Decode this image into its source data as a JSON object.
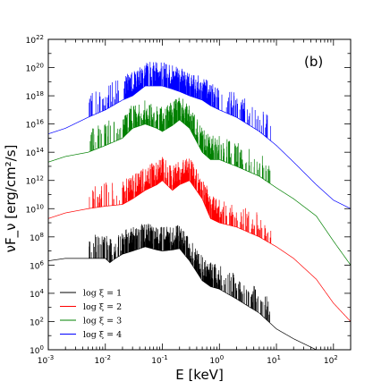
{
  "chart_data": {
    "type": "line",
    "panel_label": "(b)",
    "xlabel": "E [keV]",
    "ylabel": "νF_ν [erg/cm²/s]",
    "xscale": "log",
    "yscale": "log",
    "xlim": [
      0.001,
      200
    ],
    "ylim": [
      1,
      1e+22
    ],
    "x_ticks": [
      {
        "value": 0.001,
        "base": "10",
        "exp": "-3"
      },
      {
        "value": 0.01,
        "base": "10",
        "exp": "-2"
      },
      {
        "value": 0.1,
        "base": "10",
        "exp": "-1"
      },
      {
        "value": 1,
        "base": "10",
        "exp": "0"
      },
      {
        "value": 10,
        "base": "10",
        "exp": "1"
      },
      {
        "value": 100,
        "base": "10",
        "exp": "2"
      }
    ],
    "y_ticks": [
      {
        "value": 1,
        "base": "10",
        "exp": "0"
      },
      {
        "value": 100,
        "base": "10",
        "exp": "2"
      },
      {
        "value": 10000,
        "base": "10",
        "exp": "4"
      },
      {
        "value": 1000000,
        "base": "10",
        "exp": "6"
      },
      {
        "value": 100000000,
        "base": "10",
        "exp": "8"
      },
      {
        "value": 10000000000.0,
        "base": "10",
        "exp": "10"
      },
      {
        "value": 1000000000000.0,
        "base": "10",
        "exp": "12"
      },
      {
        "value": 100000000000000.0,
        "base": "10",
        "exp": "14"
      },
      {
        "value": 1e+16,
        "base": "10",
        "exp": "16"
      },
      {
        "value": 1e+18,
        "base": "10",
        "exp": "18"
      },
      {
        "value": 1e+20,
        "base": "10",
        "exp": "20"
      },
      {
        "value": 1e+22,
        "base": "10",
        "exp": "22"
      }
    ],
    "legend": {
      "placement": "lower-left"
    },
    "series": [
      {
        "name": "log ξ = 1",
        "color": "#000000",
        "x": [
          0.001,
          0.002,
          0.005,
          0.01,
          0.012,
          0.015,
          0.02,
          0.03,
          0.05,
          0.08,
          0.1,
          0.15,
          0.2,
          0.3,
          0.5,
          0.7,
          1,
          2,
          5,
          10,
          20,
          50
        ],
        "y": [
          2000000.0,
          3000000.0,
          3000000.0,
          3000000.0,
          1500000.0,
          3000000.0,
          6000000.0,
          10000000.0,
          20000000.0,
          12000000.0,
          10000000.0,
          12000000.0,
          15000000.0,
          2000000.0,
          80000.0,
          30000.0,
          20000.0,
          4000.0,
          400.0,
          30.0,
          6,
          1
        ]
      },
      {
        "name": "log ξ = 2",
        "color": "#ff0000",
        "x": [
          0.001,
          0.002,
          0.005,
          0.01,
          0.02,
          0.03,
          0.05,
          0.08,
          0.1,
          0.15,
          0.2,
          0.3,
          0.5,
          0.7,
          1,
          2,
          5,
          10,
          20,
          50,
          100,
          200
        ],
        "y": [
          2000000000.0,
          5000000000.0,
          10000000000.0,
          15000000000.0,
          20000000000.0,
          50000000000.0,
          200000000000.0,
          500000000000.0,
          1000000000000.0,
          200000000000.0,
          500000000000.0,
          1000000000000.0,
          50000000000.0,
          2000000000.0,
          1000000000.0,
          500000000.0,
          100000000.0,
          20000000.0,
          3000000.0,
          100000.0,
          2000.0,
          100
        ]
      },
      {
        "name": "log ξ = 3",
        "color": "#008000",
        "x": [
          0.001,
          0.002,
          0.005,
          0.01,
          0.02,
          0.03,
          0.05,
          0.08,
          0.1,
          0.15,
          0.2,
          0.3,
          0.5,
          0.7,
          1,
          2,
          5,
          10,
          20,
          50,
          100,
          200
        ],
        "y": [
          20000000000000.0,
          50000000000000.0,
          100000000000000.0,
          300000000000000.0,
          1000000000000000.0,
          5000000000000000.0,
          1e+16,
          5000000000000000.0,
          3000000000000000.0,
          8000000000000000.0,
          2e+16,
          5000000000000000.0,
          100000000000000.0,
          30000000000000.0,
          30000000000000.0,
          10000000000000.0,
          2000000000000.0,
          300000000000.0,
          50000000000.0,
          3000000000.0,
          50000000.0,
          1000000.0
        ]
      },
      {
        "name": "log ξ = 4",
        "color": "#0000ff",
        "x": [
          0.001,
          0.002,
          0.005,
          0.01,
          0.02,
          0.03,
          0.05,
          0.08,
          0.1,
          0.15,
          0.2,
          0.3,
          0.5,
          0.7,
          1,
          2,
          5,
          10,
          20,
          50,
          100,
          200
        ],
        "y": [
          2000000000000000.0,
          5000000000000000.0,
          3e+16,
          1e+17,
          5e+17,
          1e+18,
          5e+18,
          5e+18,
          5e+18,
          3e+18,
          2e+18,
          1e+18,
          5e+17,
          2e+17,
          1e+17,
          3e+16,
          3000000000000000.0,
          300000000000000.0,
          20000000000000.0,
          500000000000.0,
          40000000000.0,
          10000000000.0
        ]
      }
    ]
  }
}
